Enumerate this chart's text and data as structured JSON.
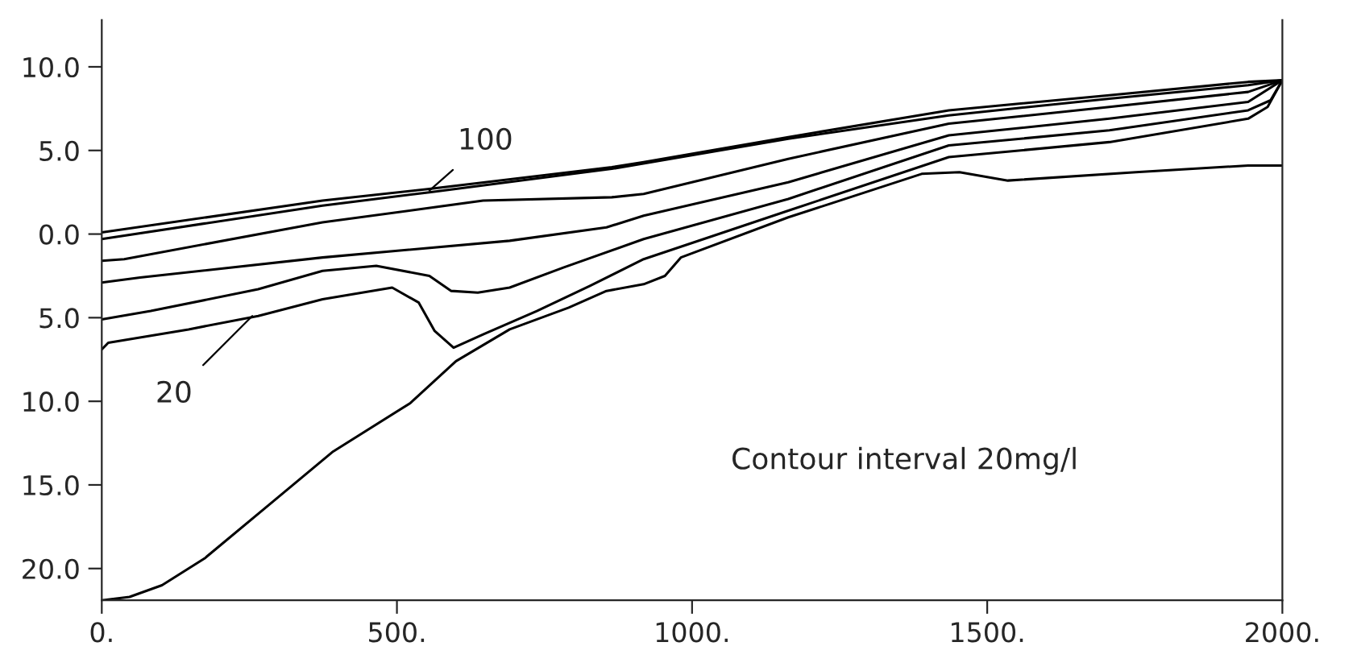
{
  "chart_data": {
    "type": "line",
    "xlim": [
      0,
      2000
    ],
    "xticks": [
      {
        "value": 0,
        "label": "0."
      },
      {
        "value": 500,
        "label": "500."
      },
      {
        "value": 1000,
        "label": "1000."
      },
      {
        "value": 1500,
        "label": "1500."
      },
      {
        "value": 2000,
        "label": "2000."
      }
    ],
    "ylim": [
      -21.9,
      12.8
    ],
    "yticks": [
      {
        "value": 10,
        "label": "10.0"
      },
      {
        "value": 5,
        "label": "5.0"
      },
      {
        "value": 0,
        "label": "0.0"
      },
      {
        "value": -5,
        "label": "5.0"
      },
      {
        "value": -10,
        "label": "10.0"
      },
      {
        "value": -15,
        "label": "15.0"
      },
      {
        "value": -20,
        "label": "20.0"
      }
    ],
    "series": [
      {
        "color": "#000000",
        "x": [
          0,
          374,
          555,
          864,
          918,
          1163,
          1435,
          1707,
          1942,
          2000
        ],
        "values": [
          0.1,
          2.0,
          2.7,
          4.0,
          4.3,
          5.8,
          7.4,
          8.3,
          9.1,
          9.2
        ]
      },
      {
        "color": "#000000",
        "x": [
          0,
          374,
          555,
          864,
          1163,
          1435,
          1707,
          1942,
          2000
        ],
        "values": [
          -0.3,
          1.7,
          2.5,
          3.9,
          5.7,
          7.1,
          8.1,
          8.9,
          9.2
        ]
      },
      {
        "color": "#000000",
        "x": [
          0,
          38,
          374,
          646,
          864,
          918,
          1163,
          1435,
          1707,
          1942,
          2000
        ],
        "values": [
          -1.6,
          -1.5,
          0.7,
          2.0,
          2.2,
          2.4,
          4.5,
          6.6,
          7.6,
          8.5,
          9.2
        ]
      },
      {
        "color": "#000000",
        "x": [
          0,
          65,
          374,
          691,
          855,
          918,
          1163,
          1435,
          1707,
          1942,
          2000
        ],
        "values": [
          -2.9,
          -2.6,
          -1.4,
          -0.4,
          0.4,
          1.1,
          3.1,
          5.9,
          6.9,
          7.9,
          9.2
        ]
      },
      {
        "color": "#000000",
        "x": [
          0,
          83,
          265,
          374,
          465,
          555,
          592,
          637,
          691,
          782,
          918,
          1163,
          1435,
          1707,
          1942,
          1980,
          2000
        ],
        "values": [
          -5.1,
          -4.6,
          -3.3,
          -2.2,
          -1.9,
          -2.5,
          -3.4,
          -3.5,
          -3.2,
          -2.0,
          -0.3,
          2.1,
          5.3,
          6.2,
          7.4,
          8.0,
          9.2
        ]
      },
      {
        "color": "#000000",
        "x": [
          0,
          11,
          147,
          265,
          374,
          492,
          537,
          564,
          596,
          646,
          737,
          827,
          918,
          1163,
          1435,
          1707,
          1942,
          1975,
          2000
        ],
        "values": [
          -6.9,
          -6.5,
          -5.7,
          -4.9,
          -3.9,
          -3.2,
          -4.1,
          -5.8,
          -6.8,
          -6.0,
          -4.6,
          -3.1,
          -1.5,
          1.4,
          4.6,
          5.5,
          6.9,
          7.6,
          9.2
        ]
      },
      {
        "color": "#000000",
        "x": [
          0,
          47,
          102,
          174,
          283,
          392,
          523,
          600,
          691,
          791,
          855,
          918,
          954,
          981,
          1163,
          1389,
          1453,
          1535,
          1752,
          1942,
          2000
        ],
        "values": [
          -21.9,
          -21.7,
          -21.0,
          -19.4,
          -16.2,
          -13.0,
          -10.1,
          -7.6,
          -5.7,
          -4.4,
          -3.4,
          -3.0,
          -2.5,
          -1.4,
          1.0,
          3.6,
          3.7,
          3.2,
          3.7,
          4.1,
          4.1
        ]
      }
    ],
    "marker": "none",
    "line_style": "solid",
    "grid": false,
    "annotations": [
      {
        "text": "100",
        "x": 555,
        "y": 2.6
      },
      {
        "text": "20",
        "x": 255,
        "y": -4.9
      },
      "Contour interval 20mg/l"
    ]
  }
}
